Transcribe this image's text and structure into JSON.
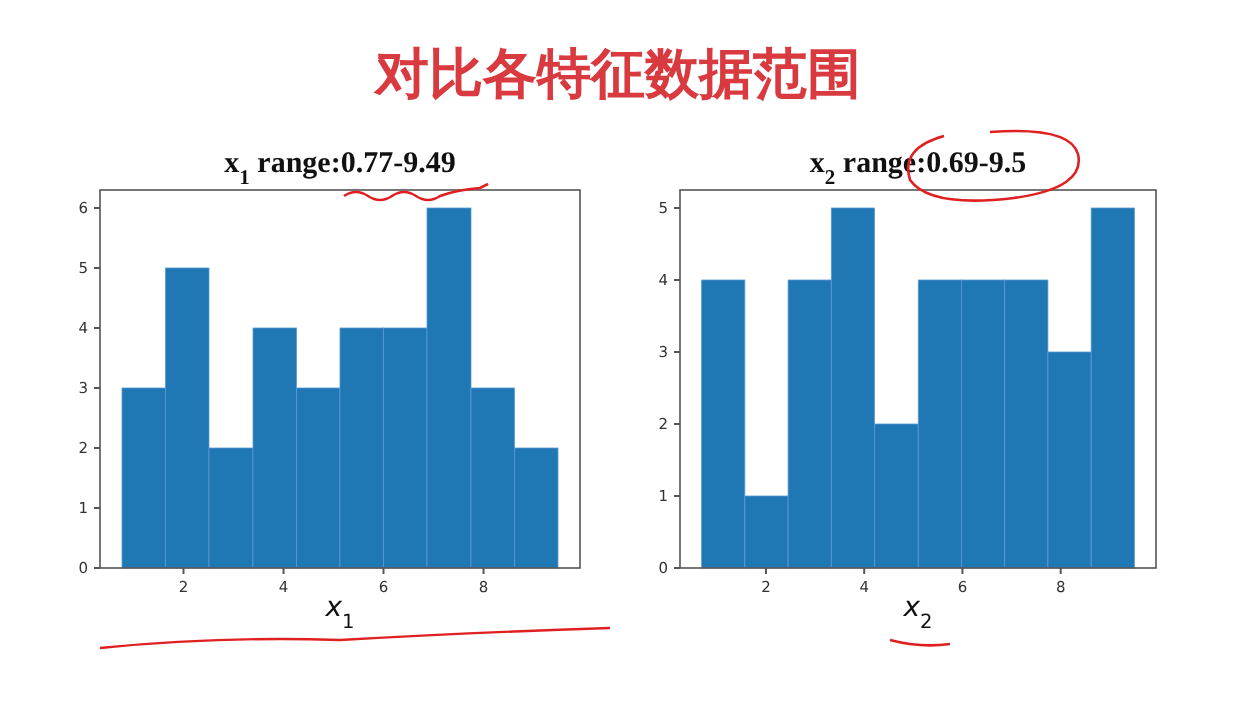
{
  "chart_data": [
    {
      "type": "histogram",
      "title": "x$_{1}$ range:0.77-9.49",
      "xlabel": "x$_{1}$",
      "annotations": [
        "对比各特征数据范围"
      ],
      "color": "#1f77b4",
      "bins": [
        0.77,
        1.64,
        2.51,
        3.39,
        4.26,
        5.13,
        6.0,
        6.87,
        7.75,
        8.62,
        9.49
      ],
      "values": [
        3,
        5,
        2,
        4,
        3,
        4,
        4,
        6,
        3,
        2
      ],
      "xlim": [
        0.33,
        9.93
      ],
      "ylim": [
        0,
        6.3
      ],
      "xticks": [
        2,
        4,
        6,
        8
      ],
      "yticks": [
        0,
        1,
        2,
        3,
        4,
        5,
        6
      ],
      "grid": false
    },
    {
      "type": "histogram",
      "title": "x$_{2}$ range:0.69-9.5",
      "xlabel": "x$_{2}$",
      "color": "#1f77b4",
      "bins": [
        0.69,
        1.57,
        2.45,
        3.33,
        4.21,
        5.1,
        5.98,
        6.86,
        7.74,
        8.62,
        9.5
      ],
      "values": [
        4,
        1,
        4,
        5,
        2,
        4,
        4,
        4,
        3,
        5
      ],
      "xlim": [
        0.25,
        9.94
      ],
      "ylim": [
        0,
        5.25
      ],
      "xticks": [
        2,
        4,
        6,
        8
      ],
      "yticks": [
        0,
        1,
        2,
        3,
        4,
        5
      ],
      "grid": false
    }
  ]
}
